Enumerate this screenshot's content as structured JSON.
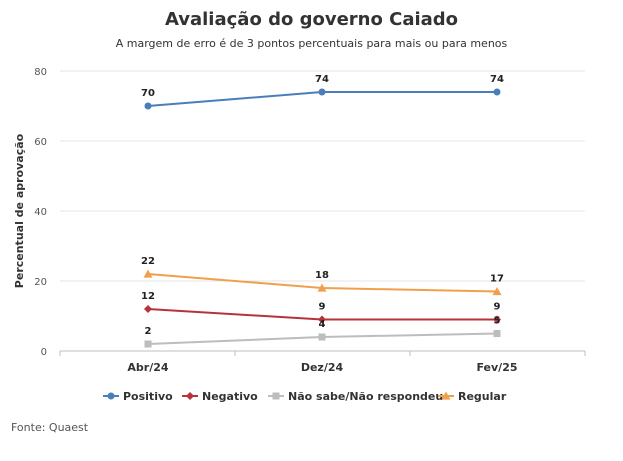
{
  "chart_data": {
    "type": "line",
    "title": "Avaliação do governo Caiado",
    "subtitle": "A margem de erro é de 3 pontos percentuais para mais ou para menos",
    "ylabel": "Percentual de aprovação",
    "xlabel": "",
    "categories": [
      "Abr/24",
      "Dez/24",
      "Fev/25"
    ],
    "ylim": [
      0,
      80
    ],
    "yticks": [
      0,
      20,
      40,
      60,
      80
    ],
    "grid": true,
    "legend_position": "bottom",
    "series": [
      {
        "name": "Positivo",
        "values": [
          70,
          74,
          74
        ],
        "color": "#4a7ebb",
        "marker": "circle"
      },
      {
        "name": "Negativo",
        "values": [
          12,
          9,
          9
        ],
        "color": "#b8323a",
        "marker": "diamond"
      },
      {
        "name": "Não sabe/Não respondeu",
        "values": [
          2,
          4,
          5
        ],
        "color": "#bdbdbd",
        "marker": "square"
      },
      {
        "name": "Regular",
        "values": [
          22,
          18,
          17
        ],
        "color": "#f0a04b",
        "marker": "triangle"
      }
    ]
  },
  "source": "Fonte: Quaest"
}
